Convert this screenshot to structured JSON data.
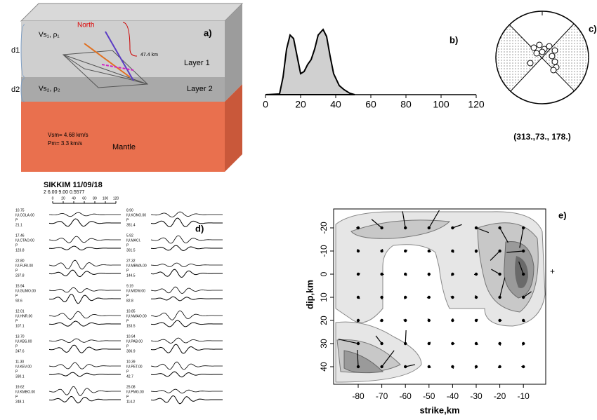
{
  "panel_a": {
    "label": "a)",
    "north": "North",
    "depth": "47.4 km",
    "layer1": "Layer 1",
    "layer2": "Layer 2",
    "vs1": "Vs₁, ρ₁",
    "vs2": "Vs₂, ρ₂",
    "d1": "d1",
    "d2": "d2",
    "vsm": "Vsm= 4.68 km/s",
    "pm": "Pm= 3.3 km/s",
    "mantle": "Mantle"
  },
  "panel_b": {
    "label": "b)",
    "xticks": [
      "0",
      "20",
      "40",
      "60",
      "80",
      "100",
      "120"
    ]
  },
  "panel_c": {
    "label": "c)",
    "mechanism": "(313.,73., 178.)"
  },
  "panel_d": {
    "label": "d)",
    "title": "SIKKIM  11/09/18",
    "params": "2    6.00   9.00     0.5577",
    "scale_ticks": [
      "0",
      "20",
      "40",
      "60",
      "80",
      "100",
      "120"
    ],
    "stations": [
      [
        "10.75",
        "IU.COLA.00",
        "P",
        "21.1"
      ],
      [
        "17.46",
        "IU.CTAO.00",
        "P",
        "123.8"
      ],
      [
        "22.80",
        "IU.FURI.00",
        "P",
        "237.8"
      ],
      [
        "15.94",
        "IU.GUMO.00",
        "P",
        "92.6"
      ],
      [
        "12.01",
        "IU.HNR.00",
        "P",
        "107.1"
      ],
      [
        "13.70",
        "IU.KBS.00",
        "P",
        "247.6"
      ],
      [
        "11.30",
        "IU.KEV.00",
        "P",
        "330.1"
      ],
      [
        "19.62",
        "IU.KMBO.00",
        "P",
        "248.1"
      ],
      [
        "8.90",
        "IU.KONO.00",
        "P",
        "351.4"
      ],
      [
        "5.92",
        "IU.MACI.",
        "P",
        "301.5"
      ],
      [
        "27.32",
        "IU.MBWA.00",
        "P",
        "144.5"
      ],
      [
        "9.19",
        "IU.MIDW.00",
        "P",
        "82.8"
      ],
      [
        "10.85",
        "IU.NWAO.00",
        "P",
        "153.5"
      ],
      [
        "10.94",
        "IU.PAB.00",
        "P",
        "306.9"
      ],
      [
        "10.39",
        "IU.PET.00",
        "P",
        "42.7"
      ],
      [
        "25.08",
        "IU.PMG.00",
        "P",
        "114.2"
      ]
    ]
  },
  "panel_e": {
    "label": "e)",
    "xlabel": "strike,km",
    "ylabel": "dip,km",
    "xticks": [
      "-80",
      "-70",
      "-60",
      "-50",
      "-40",
      "-30",
      "-20",
      "-10"
    ],
    "yticks": [
      "-20",
      "-10",
      "0",
      "10",
      "20",
      "30",
      "40"
    ]
  }
}
